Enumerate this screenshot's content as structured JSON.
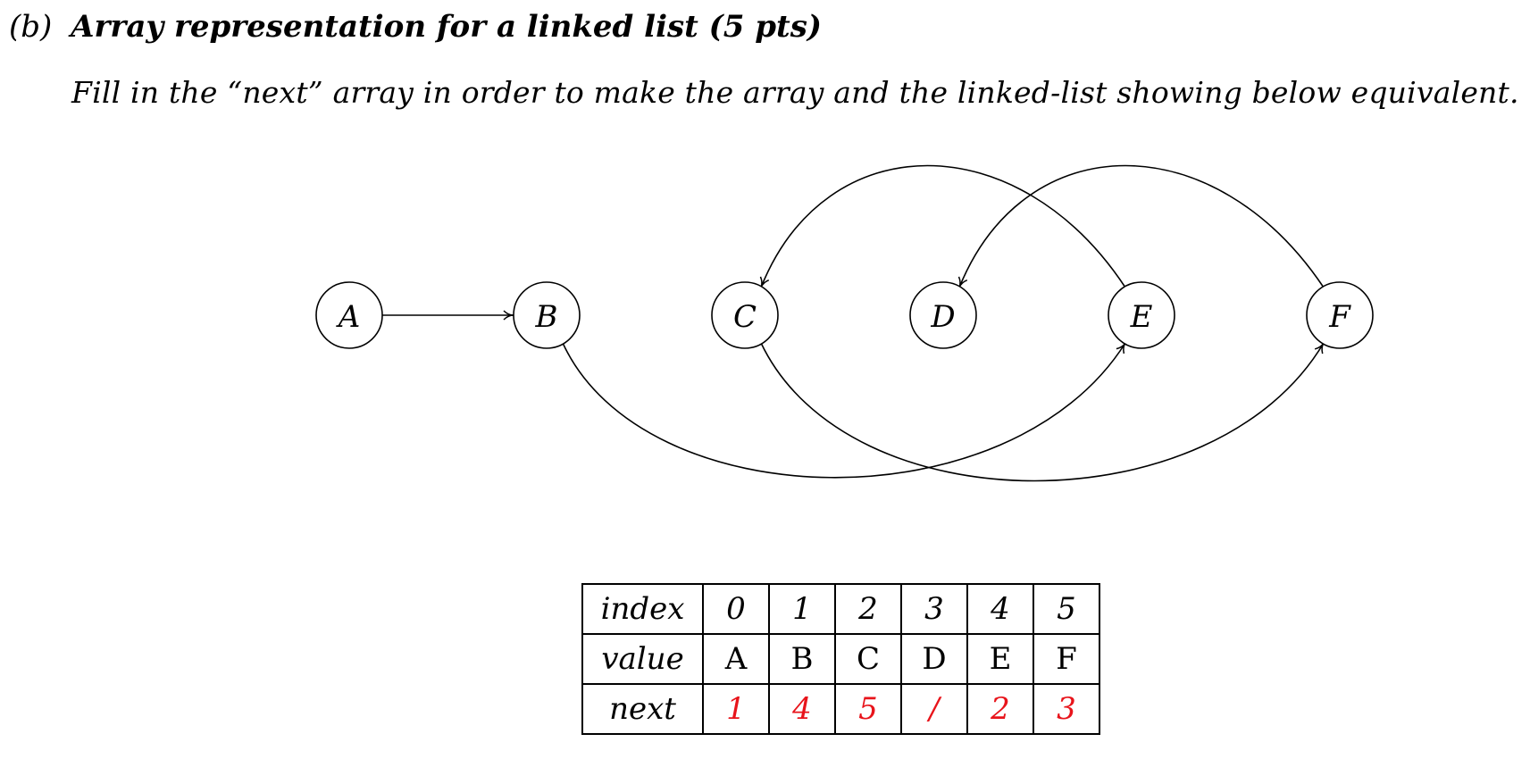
{
  "question": {
    "label": "(b)",
    "title": "Array representation for a linked list (5 pts)",
    "instruction": "Fill in the “next” array in order to make the array and the linked-list showing below equivalent."
  },
  "diagram": {
    "nodes": [
      "A",
      "B",
      "C",
      "D",
      "E",
      "F"
    ],
    "edges": [
      {
        "from": "A",
        "to": "B"
      },
      {
        "from": "B",
        "to": "E"
      },
      {
        "from": "C",
        "to": "F"
      },
      {
        "from": "E",
        "to": "C"
      },
      {
        "from": "F",
        "to": "D"
      }
    ]
  },
  "table": {
    "headers": {
      "index": "index",
      "value": "value",
      "next": "next"
    },
    "index": [
      "0",
      "1",
      "2",
      "3",
      "4",
      "5"
    ],
    "value": [
      "A",
      "B",
      "C",
      "D",
      "E",
      "F"
    ],
    "next": [
      "1",
      "4",
      "5",
      "/",
      "2",
      "3"
    ],
    "answer_color": "#e8141b"
  }
}
